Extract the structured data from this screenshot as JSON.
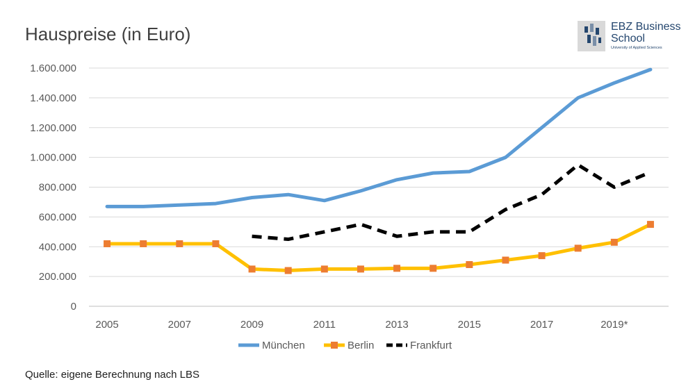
{
  "title": "Hauspreise (in Euro)",
  "source": "Quelle: eigene Berechnung nach LBS",
  "logo": {
    "name": "EBZ Business School",
    "subtitle": "University of Applied Sciences"
  },
  "chart_data": {
    "type": "line",
    "title": "Hauspreise (in Euro)",
    "xlabel": "",
    "ylabel": "",
    "x": [
      2005,
      2006,
      2007,
      2008,
      2009,
      2010,
      2011,
      2012,
      2013,
      2014,
      2015,
      2016,
      2017,
      2018,
      2019,
      2020
    ],
    "x_tick_labels": [
      "2005",
      "2007",
      "2009",
      "2011",
      "2013",
      "2015",
      "2017",
      "2019*"
    ],
    "x_tick_values": [
      2005,
      2007,
      2009,
      2011,
      2013,
      2015,
      2017,
      2019
    ],
    "y_tick_labels": [
      "0",
      "200.000",
      "400.000",
      "600.000",
      "800.000",
      "1.000.000",
      "1.200.000",
      "1.400.000",
      "1.600.000"
    ],
    "y_tick_values": [
      0,
      200000,
      400000,
      600000,
      800000,
      1000000,
      1200000,
      1400000,
      1600000
    ],
    "ylim": [
      0,
      1600000
    ],
    "grid": true,
    "legend_position": "bottom",
    "series": [
      {
        "name": "München",
        "color": "#5b9bd5",
        "style": "solid",
        "values": [
          670000,
          670000,
          680000,
          690000,
          730000,
          750000,
          710000,
          775000,
          850000,
          895000,
          905000,
          1000000,
          1200000,
          1400000,
          1500000,
          1590000
        ]
      },
      {
        "name": "Berlin",
        "color": "#ffc000",
        "marker_color": "#ed7d31",
        "style": "solid-square-markers",
        "values": [
          420000,
          420000,
          420000,
          420000,
          250000,
          240000,
          250000,
          250000,
          255000,
          255000,
          280000,
          310000,
          340000,
          390000,
          430000,
          550000
        ]
      },
      {
        "name": "Frankfurt",
        "color": "#000000",
        "style": "dashed",
        "values": [
          null,
          null,
          null,
          null,
          470000,
          450000,
          500000,
          550000,
          470000,
          500000,
          500000,
          650000,
          750000,
          950000,
          800000,
          900000
        ]
      }
    ]
  }
}
